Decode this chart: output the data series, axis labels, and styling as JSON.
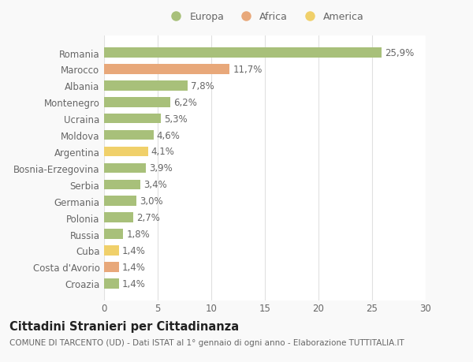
{
  "categories": [
    "Romania",
    "Marocco",
    "Albania",
    "Montenegro",
    "Ucraina",
    "Moldova",
    "Argentina",
    "Bosnia-Erzegovina",
    "Serbia",
    "Germania",
    "Polonia",
    "Russia",
    "Cuba",
    "Costa d'Avorio",
    "Croazia"
  ],
  "values": [
    25.9,
    11.7,
    7.8,
    6.2,
    5.3,
    4.6,
    4.1,
    3.9,
    3.4,
    3.0,
    2.7,
    1.8,
    1.4,
    1.4,
    1.4
  ],
  "labels": [
    "25,9%",
    "11,7%",
    "7,8%",
    "6,2%",
    "5,3%",
    "4,6%",
    "4,1%",
    "3,9%",
    "3,4%",
    "3,0%",
    "2,7%",
    "1,8%",
    "1,4%",
    "1,4%",
    "1,4%"
  ],
  "colors": [
    "#a8c07a",
    "#e8a87a",
    "#a8c07a",
    "#a8c07a",
    "#a8c07a",
    "#a8c07a",
    "#f0d06a",
    "#a8c07a",
    "#a8c07a",
    "#a8c07a",
    "#a8c07a",
    "#a8c07a",
    "#f0d06a",
    "#e8a87a",
    "#a8c07a"
  ],
  "legend_labels": [
    "Europa",
    "Africa",
    "America"
  ],
  "legend_colors": [
    "#a8c07a",
    "#e8a87a",
    "#f0d06a"
  ],
  "title": "Cittadini Stranieri per Cittadinanza",
  "subtitle": "COMUNE DI TARCENTO (UD) - Dati ISTAT al 1° gennaio di ogni anno - Elaborazione TUTTITALIA.IT",
  "xlim": [
    0,
    30
  ],
  "xticks": [
    0,
    5,
    10,
    15,
    20,
    25,
    30
  ],
  "background_color": "#f9f9f9",
  "bar_background": "#ffffff",
  "grid_color": "#e0e0e0",
  "text_color": "#666666",
  "label_fontsize": 8.5,
  "title_fontsize": 10.5,
  "subtitle_fontsize": 7.5
}
